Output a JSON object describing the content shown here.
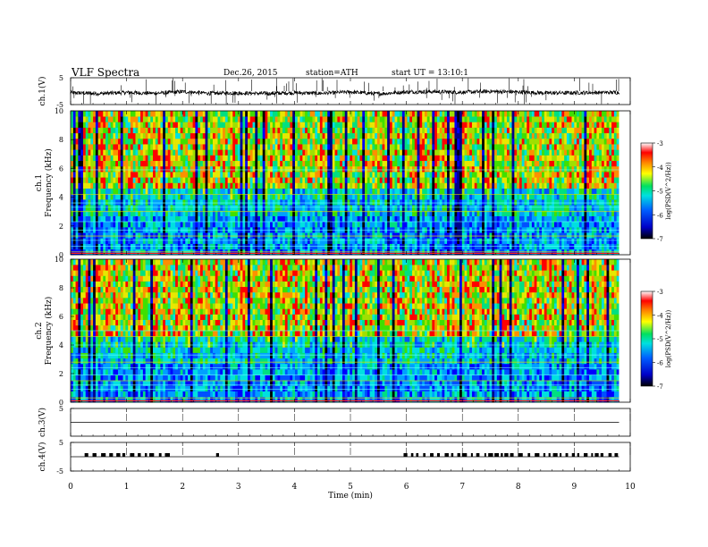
{
  "header": {
    "title": "VLF Spectra",
    "date": "Dec.26, 2015",
    "station": "station=ATH",
    "start": "start UT = 13:10:1"
  },
  "chart_data": [
    {
      "type": "line",
      "ylabel": "ch.1(V)",
      "ylim": [
        -5,
        5
      ],
      "yticks": [
        "5",
        "-5"
      ],
      "x": [
        0,
        0.5,
        1,
        1.5,
        2,
        2.5,
        3,
        3.5,
        4,
        4.5,
        5,
        5.5,
        6,
        6.5,
        7,
        7.5,
        8,
        8.5,
        9,
        9.5,
        9.8
      ],
      "values": [
        -0.6,
        -0.9,
        -0.5,
        -0.8,
        -0.2,
        -0.8,
        -0.7,
        -0.9,
        -0.6,
        -0.8,
        -0.3,
        -1.0,
        -0.3,
        -0.2,
        -0.4,
        -0.1,
        -0.3,
        -0.7,
        -0.6,
        -0.5,
        -0.5
      ]
    },
    {
      "type": "heatmap",
      "ylabel": "ch.1 Frequency (kHz)",
      "ylim": [
        0,
        10
      ],
      "yticks": [
        "0",
        "2",
        "4",
        "6",
        "8",
        "10"
      ],
      "colorbar": {
        "label": "log(PSD(V^2/Hz))",
        "ticks": [
          "-3",
          "-4",
          "-5",
          "-6",
          "-7"
        ],
        "range": [
          -7,
          -3
        ]
      }
    },
    {
      "type": "heatmap",
      "ylabel": "ch.2 Frequency (kHz)",
      "ylim": [
        0,
        10
      ],
      "yticks": [
        "0",
        "2",
        "4",
        "6",
        "8",
        "10"
      ],
      "colorbar": {
        "label": "log(PSD(V^2/Hz))",
        "ticks": [
          "-3",
          "-4",
          "-5",
          "-6",
          "-7"
        ],
        "range": [
          -7,
          -3
        ]
      }
    },
    {
      "type": "line",
      "ylabel": "ch.3(V)",
      "ylim": [
        -5,
        5
      ],
      "yticks": [
        "5"
      ],
      "x": [
        0,
        9.8
      ],
      "values": [
        0,
        0
      ]
    },
    {
      "type": "line",
      "ylabel": "ch.4(V)",
      "ylim": [
        -5,
        5
      ],
      "yticks": [
        "5",
        "-5"
      ],
      "x": [
        0,
        9.8
      ],
      "values": [
        0,
        0
      ],
      "pulse_intervals": [
        [
          0.25,
          1.8
        ],
        [
          2.6,
          2.7
        ],
        [
          5.95,
          9.75
        ]
      ]
    }
  ],
  "xaxis": {
    "label": "Time (min)",
    "xlim": [
      0,
      10
    ],
    "ticks": [
      "0",
      "1",
      "2",
      "3",
      "4",
      "5",
      "6",
      "7",
      "8",
      "9",
      "10"
    ]
  }
}
